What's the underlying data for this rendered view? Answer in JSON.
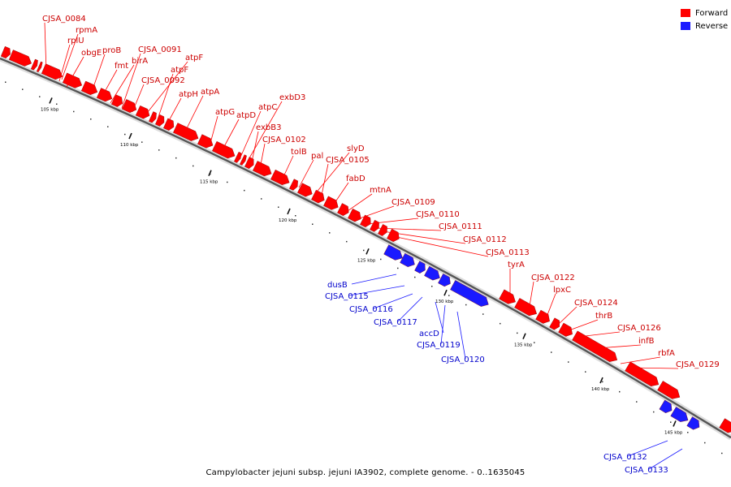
{
  "colors": {
    "forward": "#ff0000",
    "reverse": "#1a1aff",
    "forward_label": "#cc0000",
    "reverse_label": "#0000cc",
    "backbone": "#555555"
  },
  "legend": {
    "forward": "Forward",
    "reverse": "Reverse"
  },
  "caption": "Campylobacter jejuni subsp. jejuni IA3902, complete genome. - 0..1635045",
  "ticks": [
    "105 kbp",
    "110 kbp",
    "115 kbp",
    "120 kbp",
    "125 kbp",
    "130 kbp",
    "135 kbp",
    "140 kbp",
    "145 kbp"
  ],
  "forward_genes": [
    "CJSA_0084",
    "rpmA",
    "rplU",
    "obgE",
    "proB",
    "fmt",
    "birA",
    "CJSA_0091",
    "atpF",
    "atpF",
    "CJSA_0092",
    "atpH",
    "atpA",
    "atpG",
    "atpD",
    "atpC",
    "exbD3",
    "exbB3",
    "CJSA_0102",
    "tolB",
    "pal",
    "slyD",
    "CJSA_0105",
    "fabD",
    "mtnA",
    "CJSA_0109",
    "CJSA_0110",
    "CJSA_0111",
    "CJSA_0112",
    "CJSA_0113",
    "tyrA",
    "CJSA_0122",
    "lpxC",
    "CJSA_0124",
    "thrB",
    "CJSA_0126",
    "infB",
    "rbfA",
    "CJSA_0129"
  ],
  "reverse_genes": [
    "dusB",
    "CJSA_0115",
    "CJSA_0116",
    "CJSA_0117",
    "accD",
    "CJSA_0119",
    "CJSA_0120",
    "CJSA_0132",
    "CJSA_0133"
  ]
}
